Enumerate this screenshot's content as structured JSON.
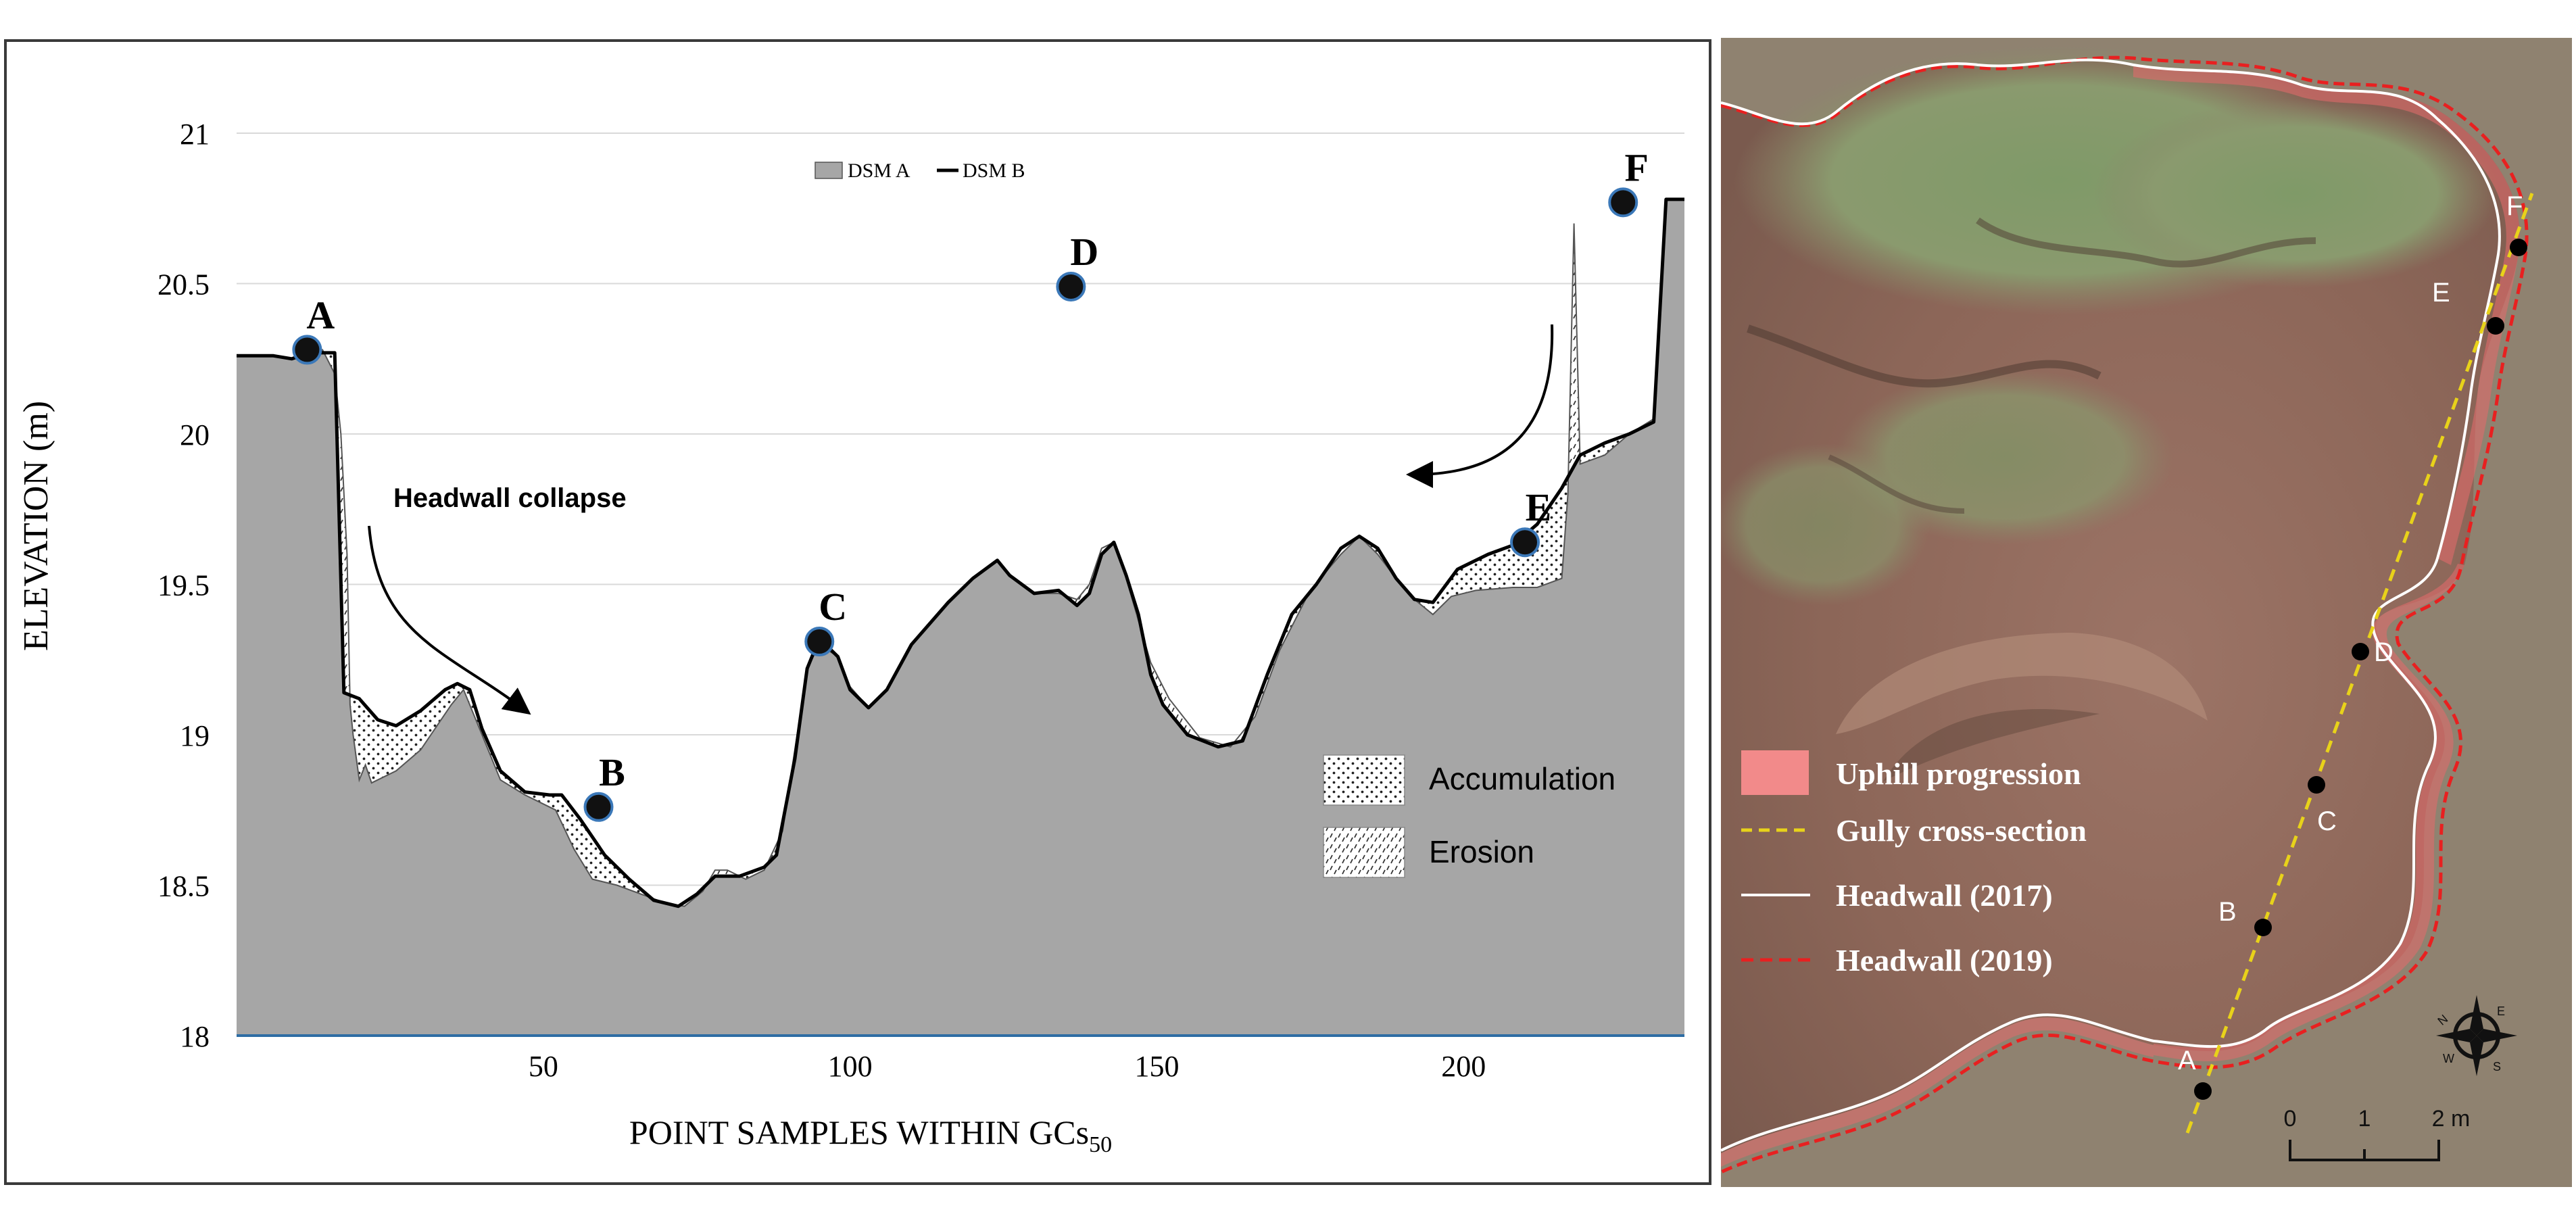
{
  "chart_data": {
    "type": "area",
    "xlabel": "POINT SAMPLES WITHIN GCs",
    "xlabel_sub": "50",
    "ylabel": "ELEVATION (m)",
    "xlim": [
      0,
      236
    ],
    "ylim": [
      18,
      21
    ],
    "x_ticks": [
      50,
      100,
      150,
      200
    ],
    "y_ticks": [
      18,
      18.5,
      19,
      19.5,
      20,
      20.5,
      21
    ],
    "grid": "horizontal",
    "legend_series": [
      {
        "name": "DSM A",
        "style": "grey-fill"
      },
      {
        "name": "DSM B",
        "style": "black-line"
      }
    ],
    "legend_patterns": [
      {
        "name": "Accumulation",
        "style": "dots"
      },
      {
        "name": "Erosion",
        "style": "hatch"
      }
    ],
    "series": [
      {
        "name": "DSM A",
        "points": [
          [
            0,
            20.26
          ],
          [
            6,
            20.26
          ],
          [
            9,
            20.25
          ],
          [
            12,
            20.27
          ],
          [
            14,
            20.28
          ],
          [
            16,
            20.2
          ],
          [
            17,
            20.0
          ],
          [
            18,
            19.6
          ],
          [
            18.5,
            19.1
          ],
          [
            19,
            19.0
          ],
          [
            20,
            18.85
          ],
          [
            21,
            18.9
          ],
          [
            22,
            18.84
          ],
          [
            26,
            18.88
          ],
          [
            30,
            18.95
          ],
          [
            35,
            19.1
          ],
          [
            37,
            19.15
          ],
          [
            40,
            19.0
          ],
          [
            43,
            18.85
          ],
          [
            47,
            18.8
          ],
          [
            52,
            18.75
          ],
          [
            55,
            18.62
          ],
          [
            58,
            18.52
          ],
          [
            62,
            18.5
          ],
          [
            66,
            18.47
          ],
          [
            70,
            18.44
          ],
          [
            73,
            18.43
          ],
          [
            76,
            18.48
          ],
          [
            78,
            18.55
          ],
          [
            80,
            18.55
          ],
          [
            83,
            18.52
          ],
          [
            86,
            18.55
          ],
          [
            89,
            18.68
          ],
          [
            91,
            18.95
          ],
          [
            93,
            19.22
          ],
          [
            95,
            19.3
          ],
          [
            98,
            19.26
          ],
          [
            100,
            19.16
          ],
          [
            103,
            19.09
          ],
          [
            106,
            19.15
          ],
          [
            110,
            19.3
          ],
          [
            116,
            19.44
          ],
          [
            120,
            19.52
          ],
          [
            124,
            19.58
          ],
          [
            126,
            19.53
          ],
          [
            130,
            19.47
          ],
          [
            134,
            19.47
          ],
          [
            137,
            19.45
          ],
          [
            139,
            19.5
          ],
          [
            141,
            19.62
          ],
          [
            143,
            19.64
          ],
          [
            145,
            19.52
          ],
          [
            147,
            19.38
          ],
          [
            149,
            19.24
          ],
          [
            152,
            19.12
          ],
          [
            157,
            18.99
          ],
          [
            162,
            18.96
          ],
          [
            166,
            19.06
          ],
          [
            170,
            19.28
          ],
          [
            175,
            19.48
          ],
          [
            180,
            19.6
          ],
          [
            183,
            19.66
          ],
          [
            186,
            19.6
          ],
          [
            189,
            19.52
          ],
          [
            192,
            19.45
          ],
          [
            195,
            19.4
          ],
          [
            198,
            19.46
          ],
          [
            202,
            19.48
          ],
          [
            208,
            19.49
          ],
          [
            212,
            19.49
          ],
          [
            216,
            19.52
          ],
          [
            217,
            19.8
          ],
          [
            218,
            20.7
          ],
          [
            219,
            19.9
          ],
          [
            223,
            19.93
          ],
          [
            227,
            20.0
          ],
          [
            231,
            20.05
          ],
          [
            233,
            20.78
          ],
          [
            236,
            20.78
          ]
        ]
      },
      {
        "name": "DSM B",
        "points": [
          [
            0,
            20.26
          ],
          [
            6,
            20.26
          ],
          [
            9,
            20.25
          ],
          [
            12,
            20.27
          ],
          [
            16,
            20.27
          ],
          [
            17.5,
            19.14
          ],
          [
            20,
            19.12
          ],
          [
            23,
            19.05
          ],
          [
            26,
            19.03
          ],
          [
            30,
            19.08
          ],
          [
            34,
            19.15
          ],
          [
            36,
            19.17
          ],
          [
            38,
            19.15
          ],
          [
            40,
            19.02
          ],
          [
            43,
            18.88
          ],
          [
            47,
            18.81
          ],
          [
            51,
            18.8
          ],
          [
            53,
            18.8
          ],
          [
            56,
            18.72
          ],
          [
            60,
            18.6
          ],
          [
            64,
            18.52
          ],
          [
            68,
            18.45
          ],
          [
            72,
            18.43
          ],
          [
            75,
            18.47
          ],
          [
            78,
            18.53
          ],
          [
            82,
            18.53
          ],
          [
            86,
            18.56
          ],
          [
            88,
            18.6
          ],
          [
            91,
            18.92
          ],
          [
            93,
            19.22
          ],
          [
            95,
            19.32
          ],
          [
            98,
            19.26
          ],
          [
            100,
            19.15
          ],
          [
            103,
            19.09
          ],
          [
            106,
            19.15
          ],
          [
            110,
            19.3
          ],
          [
            116,
            19.44
          ],
          [
            120,
            19.52
          ],
          [
            124,
            19.58
          ],
          [
            126,
            19.53
          ],
          [
            130,
            19.47
          ],
          [
            134,
            19.48
          ],
          [
            137,
            19.43
          ],
          [
            139,
            19.47
          ],
          [
            141,
            19.6
          ],
          [
            143,
            19.64
          ],
          [
            145,
            19.53
          ],
          [
            147,
            19.4
          ],
          [
            149,
            19.2
          ],
          [
            151,
            19.1
          ],
          [
            155,
            19.0
          ],
          [
            160,
            18.96
          ],
          [
            164,
            18.98
          ],
          [
            168,
            19.2
          ],
          [
            172,
            19.4
          ],
          [
            176,
            19.5
          ],
          [
            180,
            19.62
          ],
          [
            183,
            19.66
          ],
          [
            186,
            19.62
          ],
          [
            189,
            19.52
          ],
          [
            192,
            19.45
          ],
          [
            195,
            19.44
          ],
          [
            199,
            19.55
          ],
          [
            204,
            19.6
          ],
          [
            208,
            19.63
          ],
          [
            212,
            19.7
          ],
          [
            216,
            19.82
          ],
          [
            219,
            19.93
          ],
          [
            223,
            19.97
          ],
          [
            227,
            20.0
          ],
          [
            231,
            20.04
          ],
          [
            233,
            20.78
          ],
          [
            236,
            20.78
          ]
        ]
      }
    ],
    "points": [
      {
        "label": "A",
        "x": 11.5,
        "y": 20.28
      },
      {
        "label": "B",
        "x": 59,
        "y": 18.76
      },
      {
        "label": "C",
        "x": 95,
        "y": 19.31
      },
      {
        "label": "D",
        "x": 136,
        "y": 20.49
      },
      {
        "label": "E",
        "x": 210,
        "y": 19.64
      },
      {
        "label": "F",
        "x": 226,
        "y": 20.77
      }
    ],
    "annotations": [
      "Headwall collapse"
    ]
  },
  "photo": {
    "legend": [
      {
        "label": "Uphill progression",
        "color": "#f28a8a"
      },
      {
        "label": "Gully cross-section",
        "color": "#e8d21a"
      },
      {
        "label": "Headwall (2017)",
        "color": "#ffffff"
      },
      {
        "label": "Headwall (2019)",
        "color": "#e82020"
      }
    ],
    "points": [
      {
        "label": "A"
      },
      {
        "label": "B"
      },
      {
        "label": "C"
      },
      {
        "label": "D"
      },
      {
        "label": "E"
      },
      {
        "label": "F"
      }
    ],
    "scale_labels": [
      "0",
      "1",
      "2 m"
    ],
    "compass_letters": [
      "N",
      "E",
      "S",
      "W"
    ]
  }
}
